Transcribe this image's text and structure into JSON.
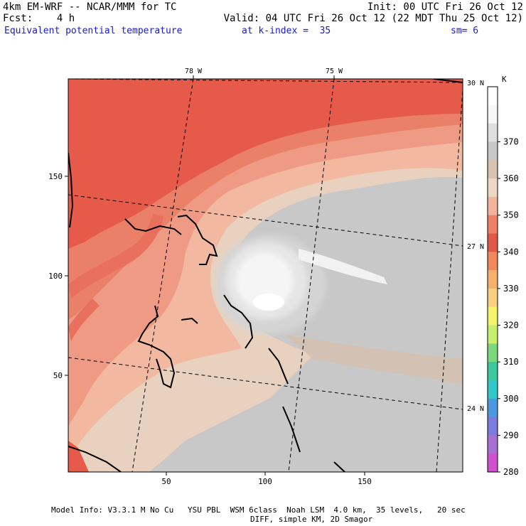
{
  "header": {
    "model": "4km EM-WRF -- NCAR/MMM for TC",
    "forecast": "Fcst:    4 h",
    "init": "Init: 00 UTC Fri 26 Oct 12",
    "valid": "Valid: 04 UTC Fri 26 Oct 12 (22 MDT Thu 25 Oct 12)",
    "field": "Equivalent potential temperature",
    "level": "at k-index =  35",
    "smoothing": "sm= 6"
  },
  "map": {
    "top_labels": [
      "78 W",
      "75 W"
    ],
    "right_labels": [
      "30 N",
      "27 N",
      "24 N"
    ],
    "x_ticks": [
      "50",
      "100",
      "150"
    ],
    "y_ticks": [
      "50",
      "100",
      "150"
    ],
    "lat_lines": [
      30,
      27,
      24
    ],
    "lon_lines": [
      78,
      75,
      72
    ]
  },
  "colorbar": {
    "unit": "K",
    "labels": [
      "370",
      "360",
      "350",
      "340",
      "330",
      "320",
      "310",
      "300",
      "290",
      "280"
    ],
    "colors": [
      "#ffffff",
      "#f7f7f7",
      "#dedede",
      "#c8c8c8",
      "#d9c2b0",
      "#ecd8c4",
      "#f4b49c",
      "#ef8068",
      "#e25848",
      "#f0885c",
      "#f4b06c",
      "#f8d080",
      "#f4f46c",
      "#c8ee6c",
      "#7cd87c",
      "#3cc89c",
      "#30c8c8",
      "#4c98e0",
      "#7c7ce0",
      "#a870d0",
      "#d050d0"
    ]
  },
  "footer": {
    "line1": "Model Info: V3.3.1 M No Cu   YSU PBL  WSM 6class  Noah LSM  4.0 km,  35 levels,   20 sec",
    "line2": "DIFF, simple KM, 2D Smagor"
  }
}
